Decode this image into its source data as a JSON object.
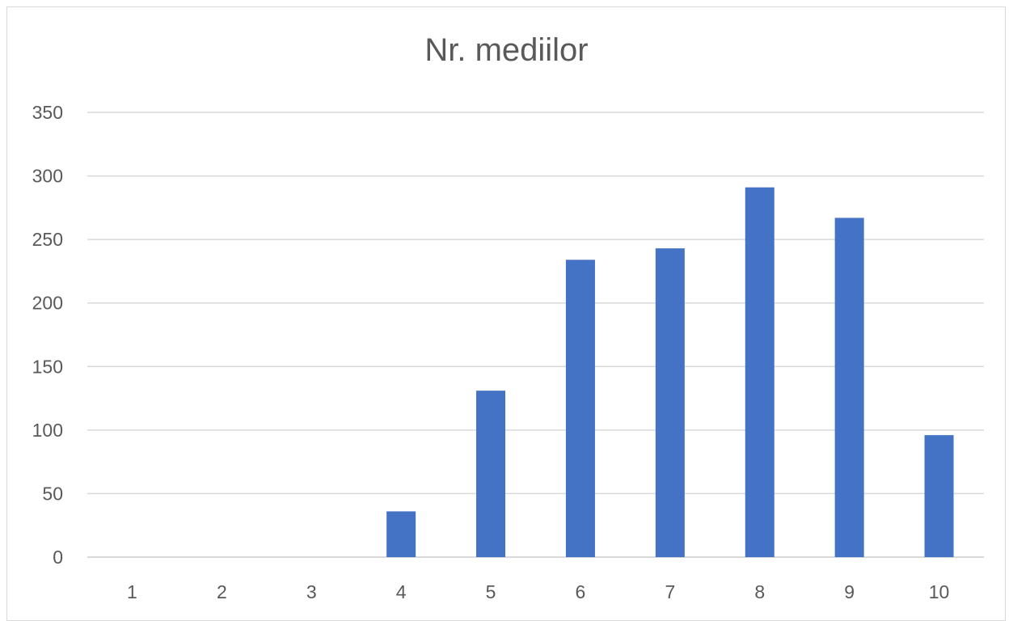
{
  "chart_data": {
    "type": "bar",
    "title": "Nr. mediilor",
    "xlabel": "",
    "ylabel": "",
    "categories": [
      "1",
      "2",
      "3",
      "4",
      "5",
      "6",
      "7",
      "8",
      "9",
      "10"
    ],
    "values": [
      0,
      0,
      0,
      36,
      131,
      234,
      243,
      291,
      267,
      96
    ],
    "ylim": [
      0,
      350
    ],
    "yticks": [
      0,
      50,
      100,
      150,
      200,
      250,
      300,
      350
    ],
    "grid": true,
    "legend": "none",
    "bar_color": "#4472c4",
    "grid_color": "#d9d9d9"
  }
}
